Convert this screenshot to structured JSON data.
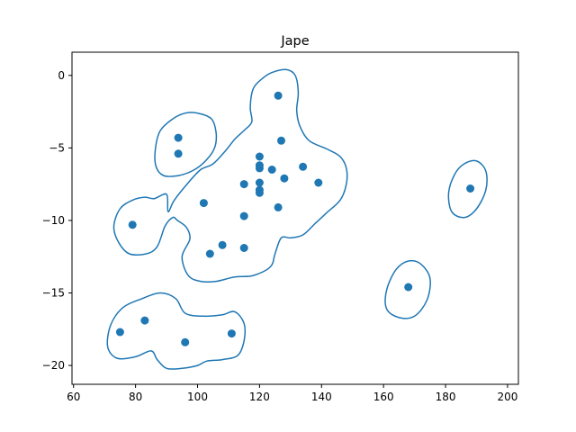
{
  "chart_data": {
    "type": "scatter",
    "title": "Jape",
    "xlabel": "",
    "ylabel": "",
    "xlim": [
      59.5,
      203.5
    ],
    "ylim": [
      -21.3,
      1.6
    ],
    "x_ticks": [
      60,
      80,
      100,
      120,
      140,
      160,
      180,
      200
    ],
    "y_ticks": [
      0,
      -5,
      -10,
      -15,
      -20
    ],
    "grid": false,
    "colors": {
      "series": "#1f77b4",
      "axes": "#000000",
      "background": "#ffffff"
    },
    "series": [
      {
        "points": [
          [
            126,
            -1.4
          ],
          [
            93.8,
            -4.3
          ],
          [
            93.8,
            -5.4
          ],
          [
            127,
            -4.5
          ],
          [
            120,
            -5.6
          ],
          [
            120,
            -6.2
          ],
          [
            120,
            -6.4
          ],
          [
            124,
            -6.5
          ],
          [
            134,
            -6.3
          ],
          [
            128,
            -7.1
          ],
          [
            139,
            -7.4
          ],
          [
            115,
            -7.5
          ],
          [
            120,
            -7.4
          ],
          [
            120,
            -7.9
          ],
          [
            120,
            -8.1
          ],
          [
            102,
            -8.8
          ],
          [
            126,
            -9.1
          ],
          [
            115,
            -9.7
          ],
          [
            79,
            -10.3
          ],
          [
            108,
            -11.7
          ],
          [
            115,
            -11.9
          ],
          [
            104,
            -12.3
          ],
          [
            168,
            -14.6
          ],
          [
            188,
            -7.8
          ],
          [
            83,
            -16.9
          ],
          [
            75,
            -17.7
          ],
          [
            111,
            -17.8
          ],
          [
            96,
            -18.4
          ]
        ]
      }
    ],
    "contours": [
      {
        "points": [
          [
            86,
            -8.5
          ],
          [
            90,
            -8.2
          ],
          [
            90.5,
            -9.4
          ],
          [
            92.5,
            -8.6
          ],
          [
            97,
            -7.4
          ],
          [
            101,
            -6.5
          ],
          [
            105,
            -6.1
          ],
          [
            109,
            -5.2
          ],
          [
            112,
            -4.4
          ],
          [
            115,
            -3.8
          ],
          [
            117.5,
            -3.2
          ],
          [
            117,
            -2.2
          ],
          [
            118,
            -0.9
          ],
          [
            121,
            -0.2
          ],
          [
            124,
            0.2
          ],
          [
            128.5,
            0.4
          ],
          [
            131.5,
            0.0
          ],
          [
            132.5,
            -1.2
          ],
          [
            132,
            -2.4
          ],
          [
            133,
            -3.5
          ],
          [
            136,
            -4.5
          ],
          [
            142,
            -5.1
          ],
          [
            146,
            -5.6
          ],
          [
            148,
            -6.4
          ],
          [
            148,
            -7.5
          ],
          [
            146,
            -8.6
          ],
          [
            141.5,
            -9.5
          ],
          [
            138,
            -10.2
          ],
          [
            134,
            -11.0
          ],
          [
            130,
            -11.2
          ],
          [
            127,
            -11.2
          ],
          [
            125,
            -12.3
          ],
          [
            123.5,
            -13.2
          ],
          [
            118,
            -13.8
          ],
          [
            112,
            -13.9
          ],
          [
            106,
            -14.2
          ],
          [
            101,
            -14.2
          ],
          [
            97,
            -13.8
          ],
          [
            95,
            -12.5
          ],
          [
            97.5,
            -11.3
          ],
          [
            96.5,
            -10.5
          ],
          [
            93.5,
            -10.0
          ],
          [
            92,
            -9.8
          ],
          [
            89.5,
            -10.4
          ],
          [
            87,
            -11.8
          ],
          [
            83.5,
            -12.3
          ],
          [
            78,
            -12.3
          ],
          [
            74.5,
            -11.5
          ],
          [
            73,
            -10.4
          ],
          [
            75,
            -9.2
          ],
          [
            79,
            -8.6
          ],
          [
            83,
            -8.4
          ]
        ]
      },
      {
        "points": [
          [
            88,
            -3.8
          ],
          [
            92,
            -3.0
          ],
          [
            96,
            -2.6
          ],
          [
            100,
            -2.6
          ],
          [
            104.5,
            -3.0
          ],
          [
            106,
            -4.0
          ],
          [
            105.5,
            -5.0
          ],
          [
            103,
            -5.8
          ],
          [
            99,
            -6.5
          ],
          [
            94,
            -6.9
          ],
          [
            89,
            -6.9
          ],
          [
            86.5,
            -6.2
          ],
          [
            86.5,
            -4.9
          ]
        ]
      },
      {
        "points": [
          [
            76,
            -16.0
          ],
          [
            82,
            -15.4
          ],
          [
            88,
            -15.0
          ],
          [
            93,
            -15.4
          ],
          [
            96,
            -16.4
          ],
          [
            102,
            -16.6
          ],
          [
            108,
            -16.5
          ],
          [
            112,
            -16.3
          ],
          [
            115,
            -17.1
          ],
          [
            115,
            -18.3
          ],
          [
            113,
            -19.3
          ],
          [
            108,
            -19.6
          ],
          [
            103,
            -19.7
          ],
          [
            100,
            -20.0
          ],
          [
            95,
            -20.2
          ],
          [
            90,
            -20.2
          ],
          [
            87,
            -19.6
          ],
          [
            85,
            -19.0
          ],
          [
            80,
            -19.4
          ],
          [
            74,
            -19.5
          ],
          [
            71,
            -18.7
          ],
          [
            72,
            -17.2
          ]
        ]
      },
      {
        "points": [
          [
            168,
            -12.8
          ],
          [
            172,
            -13.0
          ],
          [
            175,
            -14.0
          ],
          [
            174,
            -15.5
          ],
          [
            170,
            -16.6
          ],
          [
            165,
            -16.7
          ],
          [
            161,
            -16.1
          ],
          [
            161,
            -14.8
          ],
          [
            164,
            -13.4
          ]
        ]
      },
      {
        "points": [
          [
            186,
            -6.1
          ],
          [
            190,
            -5.9
          ],
          [
            193,
            -6.6
          ],
          [
            193,
            -7.9
          ],
          [
            190,
            -9.2
          ],
          [
            186,
            -9.8
          ],
          [
            182,
            -9.4
          ],
          [
            181,
            -8.1
          ],
          [
            183,
            -6.8
          ]
        ]
      }
    ]
  }
}
